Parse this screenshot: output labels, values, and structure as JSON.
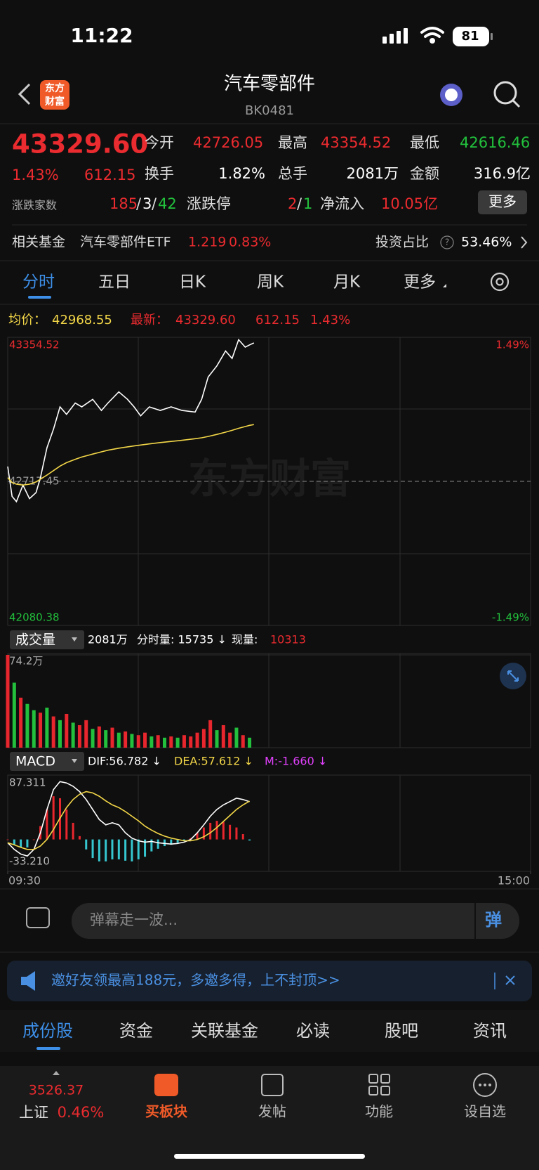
{
  "status_bar": {
    "time": "11:22",
    "battery": "81"
  },
  "header": {
    "logo": [
      "东方",
      "财富"
    ],
    "title": "汽车零部件",
    "code": "BK0481"
  },
  "quote": {
    "price": "43329.60",
    "change_pct": "1.43%",
    "change": "612.15",
    "open_label": "今开",
    "open": "42726.05",
    "high_label": "最高",
    "high": "43354.52",
    "low_label": "最低",
    "low": "42616.46",
    "turnover_label": "换手",
    "turnover": "1.82%",
    "volume_label": "总手",
    "volume": "2081万",
    "amount_label": "金额",
    "amount": "316.9亿",
    "breadth_label": "涨跌家数",
    "advancers": "185",
    "unchanged": "3",
    "decliners": "42",
    "separator": "/",
    "limit_label": "涨跌停",
    "limit_up": "2",
    "limit_down": "1",
    "netflow_label": "净流入",
    "netflow": "10.05亿",
    "more": "更多"
  },
  "fund": {
    "label": "相关基金",
    "name": "汽车零部件ETF",
    "price": "1.219",
    "change_pct": "0.83%",
    "ratio_label": "投资占比",
    "help": "?",
    "ratio": "53.46%"
  },
  "tabs": [
    "分时",
    "五日",
    "日K",
    "周K",
    "月K",
    "更多"
  ],
  "price_info": {
    "avg": "42968.55",
    "latest": "43329.60",
    "change": "612.15",
    "change_pct": "1.43%"
  },
  "watermark": "东方财富",
  "volume_info": {
    "selector": "成交量",
    "total": "2081万",
    "minute_volume": "分时量: 15735 ↓",
    "current_label": "现量:",
    "current": "10313"
  },
  "macd_info": {
    "selector": "MACD",
    "dif": "DIF:56.782 ↓",
    "dea": "DEA:57.612 ↓",
    "m": "M:-1.660 ↓"
  },
  "chart_data": [
    {
      "type": "line",
      "xlim": [
        0,
        240
      ],
      "x": [
        0,
        2,
        4,
        7,
        10,
        13,
        15,
        18,
        21,
        24,
        27,
        31,
        34,
        39,
        43,
        46,
        51,
        55,
        58,
        61,
        65,
        70,
        75,
        80,
        86,
        89,
        92,
        96,
        100,
        103,
        106,
        109,
        111,
        113
      ],
      "ylim": [
        42080.38,
        43354.52
      ],
      "yticks": [
        43354.52,
        42717.45,
        42080.38
      ],
      "y2lim": [
        -1.49,
        1.49
      ],
      "y2ticks": [
        {
          "value": 1.49,
          "label": "1.49%"
        },
        {
          "value": -1.49,
          "label": "-1.49%"
        }
      ],
      "grid": true,
      "series": [
        {
          "name": "最新：",
          "color": "#ffffff",
          "values": [
            42783,
            42651,
            42628,
            42701,
            42641,
            42668,
            42734,
            42866,
            42948,
            43047,
            43014,
            43064,
            43047,
            43080,
            43031,
            43064,
            43113,
            43080,
            43047,
            43007,
            43047,
            43031,
            43047,
            43031,
            43024,
            43080,
            43179,
            43228,
            43294,
            43261,
            43344,
            43311,
            43321,
            43329.6
          ]
        },
        {
          "name": "均价：",
          "color": "#f2d648",
          "values": [
            42734,
            42712,
            42705,
            42701,
            42705,
            42715,
            42727,
            42745,
            42765,
            42785,
            42800,
            42815,
            42825,
            42838,
            42848,
            42855,
            42864,
            42870,
            42874,
            42878,
            42883,
            42889,
            42894,
            42899,
            42906,
            42910,
            42916,
            42925,
            42935,
            42943,
            42952,
            42960,
            42965,
            42968.55
          ]
        }
      ]
    },
    {
      "type": "bar",
      "xlim": [
        0,
        240
      ],
      "x": [
        0,
        3,
        6,
        9,
        12,
        15,
        18,
        21,
        24,
        27,
        30,
        33,
        36,
        39,
        42,
        45,
        48,
        51,
        54,
        57,
        60,
        63,
        66,
        69,
        72,
        75,
        78,
        81,
        84,
        87,
        90,
        93,
        96,
        99,
        102,
        105,
        108,
        111
      ],
      "ylim": [
        0,
        74.2
      ],
      "yticks": [
        {
          "value": 74.2,
          "label": "74.2万"
        }
      ],
      "values": [
        74.2,
        52,
        40,
        35,
        30,
        28,
        32,
        25,
        22,
        27,
        20,
        18,
        22,
        15,
        17,
        14,
        16,
        12,
        13,
        11,
        10,
        12,
        9,
        10,
        8,
        9,
        8,
        10,
        9,
        12,
        15,
        22,
        14,
        18,
        12,
        16,
        10,
        8
      ],
      "colors": [
        "#e8262d",
        "#22c03c",
        "#e8262d",
        "#22c03c",
        "#22c03c",
        "#e8262d",
        "#22c03c",
        "#e8262d",
        "#22c03c",
        "#e8262d",
        "#22c03c",
        "#e8262d",
        "#e8262d",
        "#22c03c",
        "#e8262d",
        "#22c03c",
        "#e8262d",
        "#22c03c",
        "#e8262d",
        "#22c03c",
        "#e8262d",
        "#e8262d",
        "#22c03c",
        "#e8262d",
        "#22c03c",
        "#e8262d",
        "#22c03c",
        "#e8262d",
        "#e8262d",
        "#e8262d",
        "#e8262d",
        "#e8262d",
        "#22c03c",
        "#e8262d",
        "#e8262d",
        "#22c03c",
        "#e8262d",
        "#22c03c"
      ]
    },
    {
      "type": "line",
      "xlim": [
        0,
        240
      ],
      "x": [
        0,
        3,
        6,
        9,
        12,
        15,
        18,
        21,
        24,
        27,
        30,
        33,
        36,
        39,
        42,
        45,
        48,
        51,
        54,
        57,
        60,
        63,
        66,
        69,
        72,
        75,
        78,
        81,
        84,
        87,
        90,
        93,
        96,
        99,
        102,
        105,
        108,
        111
      ],
      "xticks": [
        {
          "value": 0,
          "label": "09:30"
        },
        {
          "value": 240,
          "label": "15:00"
        }
      ],
      "ylim": [
        -33.21,
        87.311
      ],
      "yticks": [
        87.311,
        {
          "value": -33.21,
          "label": "-33.210"
        }
      ],
      "series": [
        {
          "type": "bar",
          "up_color": "#e8262d",
          "down_color": "#35c6cf",
          "values": [
            0,
            -8,
            -12,
            -12,
            0,
            20,
            45,
            65,
            62,
            45,
            25,
            5,
            -15,
            -28,
            -33,
            -33,
            -30,
            -30,
            -32,
            -33,
            -30,
            -26,
            -18,
            -14,
            -10,
            -8,
            -5,
            -2,
            2,
            10,
            18,
            25,
            28,
            26,
            22,
            18,
            8,
            -1.66
          ]
        },
        {
          "color": "#ffffff",
          "values": [
            -5,
            -15,
            -22,
            -25,
            -15,
            10,
            45,
            75,
            87,
            85,
            80,
            72,
            60,
            45,
            30,
            22,
            25,
            22,
            10,
            2,
            -2,
            -4,
            -3,
            -5,
            -6,
            -7,
            -6,
            -4,
            0,
            10,
            22,
            35,
            45,
            52,
            57,
            62,
            60,
            56.782
          ]
        },
        {
          "color": "#f2d648",
          "values": [
            -5,
            -8,
            -12,
            -15,
            -15,
            -10,
            0,
            15,
            32,
            48,
            60,
            68,
            72,
            70,
            65,
            58,
            52,
            48,
            42,
            35,
            28,
            20,
            14,
            9,
            5,
            2,
            0,
            -2,
            -2,
            0,
            4,
            10,
            18,
            27,
            36,
            45,
            52,
            57.612
          ]
        }
      ]
    }
  ],
  "comment": {
    "placeholder": "弹幕走一波...",
    "button": "弹"
  },
  "banner": {
    "text": "邀好友领最高188元，多邀多得，上不封顶>>"
  },
  "section_tabs": [
    "成份股",
    "资金",
    "关联基金",
    "必读",
    "股吧",
    "资讯"
  ],
  "bottom_nav": {
    "index_price": "3526.37",
    "index_name": "上证",
    "index_change": "0.46%",
    "items": [
      "买板块",
      "发帖",
      "功能",
      "设自选"
    ]
  }
}
